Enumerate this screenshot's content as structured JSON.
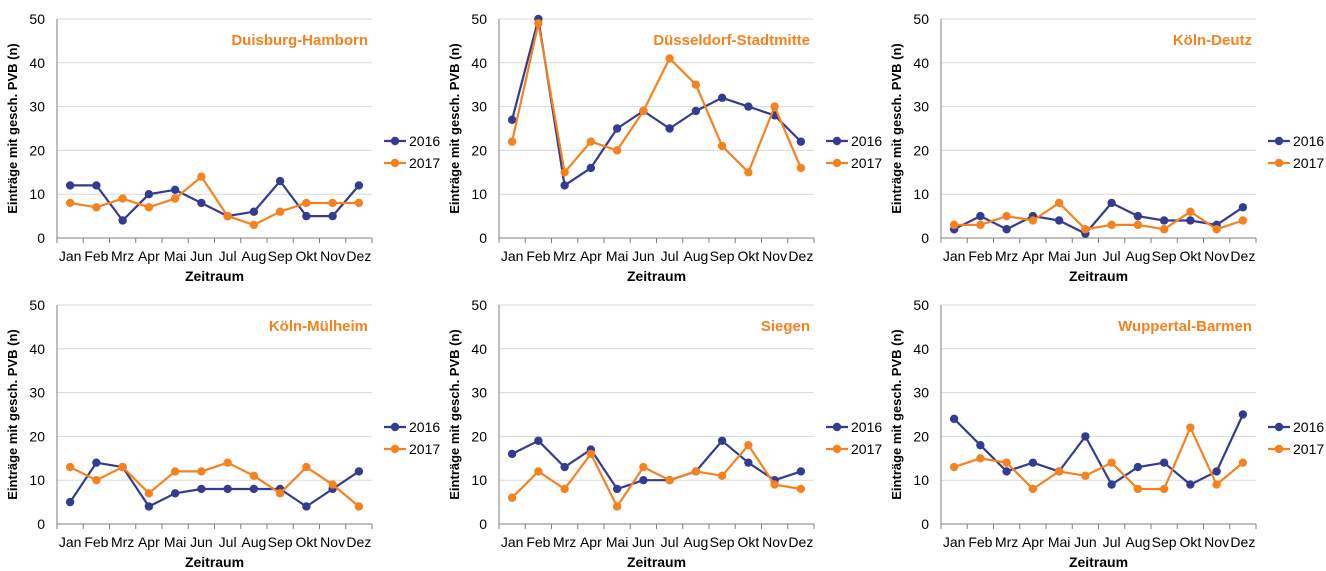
{
  "colors": {
    "s2016": "#333c8f",
    "s2017": "#f5821f",
    "title": "#f5821f",
    "grid": "#d9d9d9",
    "axis": "#7f7f7f"
  },
  "chart_data": [
    {
      "type": "line",
      "title": "Duisburg-Hamborn",
      "xlabel": "Zeitraum",
      "ylabel": "Einträge mit gesch. PVB (n)",
      "ylim": [
        0,
        50
      ],
      "yticks": [
        "0",
        "10",
        "20",
        "30",
        "40",
        "50"
      ],
      "categories": [
        "Jan",
        "Feb",
        "Mrz",
        "Apr",
        "Mai",
        "Jun",
        "Jul",
        "Aug",
        "Sep",
        "Okt",
        "Nov",
        "Dez"
      ],
      "legend_position": "right",
      "grid": true,
      "series": [
        {
          "name": "2016",
          "values": [
            12,
            12,
            4,
            10,
            11,
            8,
            5,
            6,
            13,
            5,
            5,
            12
          ]
        },
        {
          "name": "2017",
          "values": [
            8,
            7,
            9,
            7,
            9,
            14,
            5,
            3,
            6,
            8,
            8,
            8
          ]
        }
      ]
    },
    {
      "type": "line",
      "title": "Düsseldorf-Stadtmitte",
      "xlabel": "Zeitraum",
      "ylabel": "Einträge mit gesch. PVB (n)",
      "ylim": [
        0,
        50
      ],
      "yticks": [
        "0",
        "10",
        "20",
        "30",
        "40",
        "50"
      ],
      "categories": [
        "Jan",
        "Feb",
        "Mrz",
        "Apr",
        "Mai",
        "Jun",
        "Jul",
        "Aug",
        "Sep",
        "Okt",
        "Nov",
        "Dez"
      ],
      "legend_position": "right",
      "grid": true,
      "series": [
        {
          "name": "2016",
          "values": [
            27,
            50,
            12,
            16,
            25,
            29,
            25,
            29,
            32,
            30,
            28,
            22
          ]
        },
        {
          "name": "2017",
          "values": [
            22,
            49,
            15,
            22,
            20,
            29,
            41,
            35,
            21,
            15,
            30,
            16
          ]
        }
      ]
    },
    {
      "type": "line",
      "title": "Köln-Deutz",
      "xlabel": "Zeitraum",
      "ylabel": "Einträge mit gesch. PVB (n)",
      "ylim": [
        0,
        50
      ],
      "yticks": [
        "0",
        "10",
        "20",
        "30",
        "40",
        "50"
      ],
      "categories": [
        "Jan",
        "Feb",
        "Mrz",
        "Apr",
        "Mai",
        "Jun",
        "Jul",
        "Aug",
        "Sep",
        "Okt",
        "Nov",
        "Dez"
      ],
      "legend_position": "right",
      "grid": true,
      "series": [
        {
          "name": "2016",
          "values": [
            2,
            5,
            2,
            5,
            4,
            1,
            8,
            5,
            4,
            4,
            3,
            7
          ]
        },
        {
          "name": "2017",
          "values": [
            3,
            3,
            5,
            4,
            8,
            2,
            3,
            3,
            2,
            6,
            2,
            4
          ]
        }
      ]
    },
    {
      "type": "line",
      "title": "Köln-Mülheim",
      "xlabel": "Zeitraum",
      "ylabel": "Einträge mit gesch. PVB (n)",
      "ylim": [
        0,
        50
      ],
      "yticks": [
        "0",
        "10",
        "20",
        "30",
        "40",
        "50"
      ],
      "categories": [
        "Jan",
        "Feb",
        "Mrz",
        "Apr",
        "Mai",
        "Jun",
        "Jul",
        "Aug",
        "Sep",
        "Okt",
        "Nov",
        "Dez"
      ],
      "legend_position": "right",
      "grid": true,
      "series": [
        {
          "name": "2016",
          "values": [
            5,
            14,
            13,
            4,
            7,
            8,
            8,
            8,
            8,
            4,
            8,
            12
          ]
        },
        {
          "name": "2017",
          "values": [
            13,
            10,
            13,
            7,
            12,
            12,
            14,
            11,
            7,
            13,
            9,
            4
          ]
        }
      ]
    },
    {
      "type": "line",
      "title": "Siegen",
      "xlabel": "Zeitraum",
      "ylabel": "Einträge mit gesch. PVB (n)",
      "ylim": [
        0,
        50
      ],
      "yticks": [
        "0",
        "10",
        "20",
        "30",
        "40",
        "50"
      ],
      "categories": [
        "Jan",
        "Feb",
        "Mrz",
        "Apr",
        "Mai",
        "Jun",
        "Jul",
        "Aug",
        "Sep",
        "Okt",
        "Nov",
        "Dez"
      ],
      "legend_position": "right",
      "grid": true,
      "series": [
        {
          "name": "2016",
          "values": [
            16,
            19,
            13,
            17,
            8,
            10,
            10,
            12,
            19,
            14,
            10,
            12
          ]
        },
        {
          "name": "2017",
          "values": [
            6,
            12,
            8,
            16,
            4,
            13,
            10,
            12,
            11,
            18,
            9,
            8
          ]
        }
      ]
    },
    {
      "type": "line",
      "title": "Wuppertal-Barmen",
      "xlabel": "Zeitraum",
      "ylabel": "Einträge mit gesch. PVB (n)",
      "ylim": [
        0,
        50
      ],
      "yticks": [
        "0",
        "10",
        "20",
        "30",
        "40",
        "50"
      ],
      "categories": [
        "Jan",
        "Feb",
        "Mrz",
        "Apr",
        "Mai",
        "Jun",
        "Jul",
        "Aug",
        "Sep",
        "Okt",
        "Nov",
        "Dez"
      ],
      "legend_position": "right",
      "grid": true,
      "series": [
        {
          "name": "2016",
          "values": [
            24,
            18,
            12,
            14,
            12,
            20,
            9,
            13,
            14,
            9,
            12,
            25
          ]
        },
        {
          "name": "2017",
          "values": [
            13,
            15,
            14,
            8,
            12,
            11,
            14,
            8,
            8,
            22,
            9,
            14
          ]
        }
      ]
    }
  ]
}
